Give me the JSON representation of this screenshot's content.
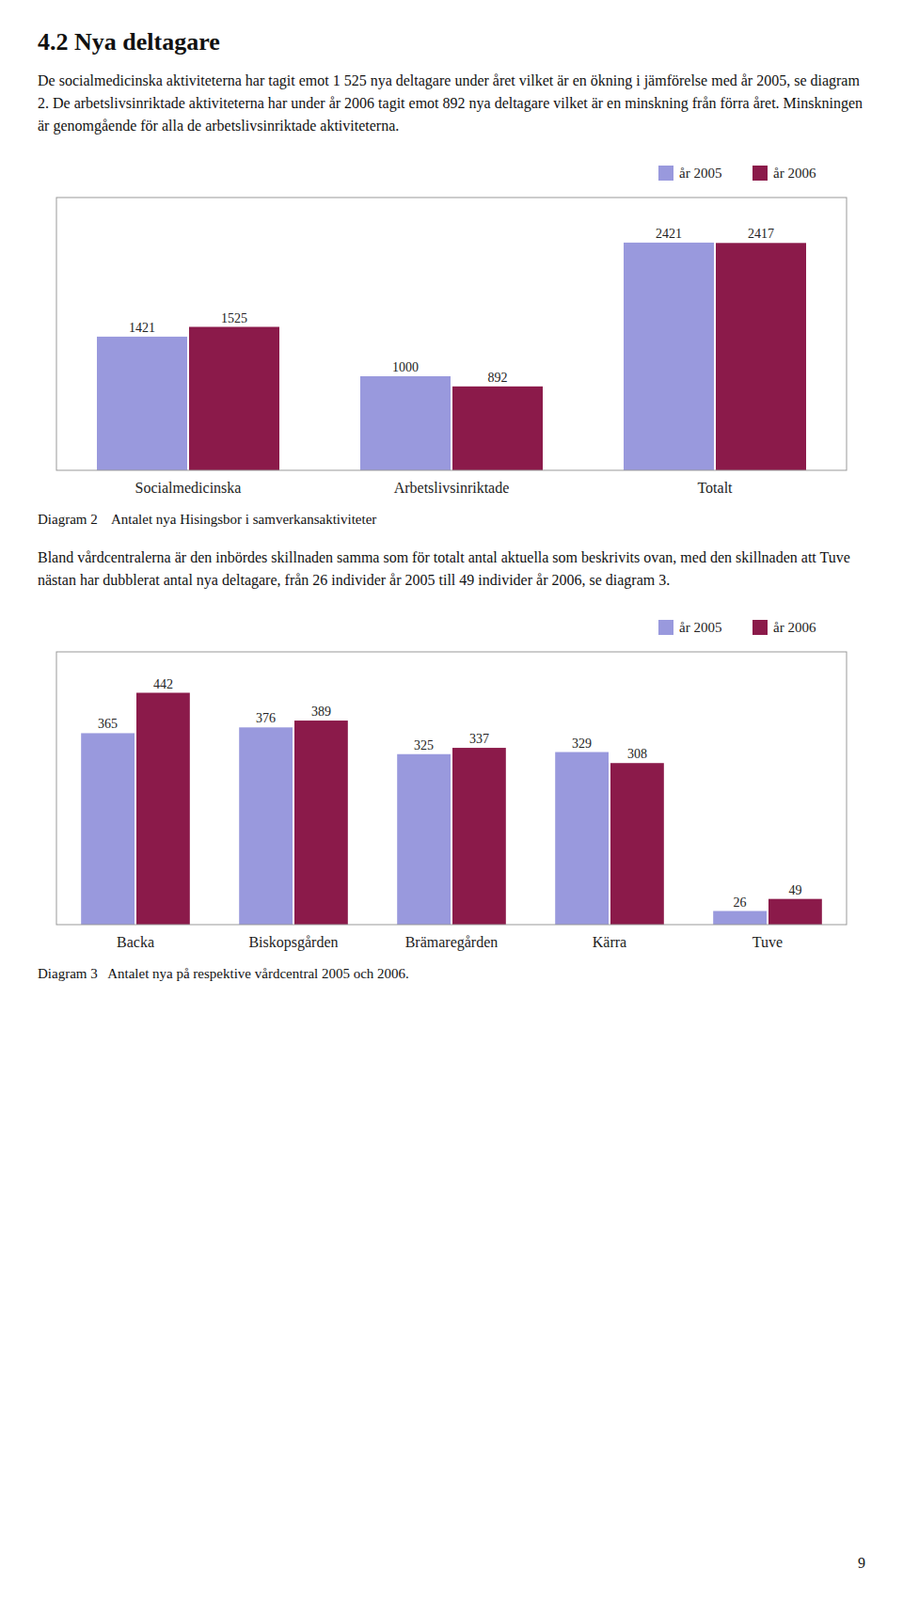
{
  "heading": "4.2 Nya deltagare",
  "body_text1": "De socialmedicinska aktiviteterna har tagit emot 1 525 nya deltagare under året vilket är en ökning i jämförelse med år 2005, se diagram 2. De arbetslivsinriktade aktiviteterna har under år 2006 tagit emot 892 nya deltagare vilket är en minskning från förra året. Minskningen är genomgående för alla de arbetslivsinriktade aktiviteterna.",
  "body_text2": "Bland vårdcentralerna är den inbördes skillnaden samma som för totalt antal aktuella som beskrivits ovan, med den skillnaden att Tuve nästan har dubblerat antal nya deltagare, från 26 individer år 2005 till 49 individer år 2006, se diagram 3.",
  "page_number": "9",
  "chart_data": [
    {
      "type": "bar",
      "title": "Diagram 2    Antalet nya Hisingsbor i samverkansaktiviteter",
      "categories": [
        "Socialmedicinska",
        "Arbetslivsinriktade",
        "Totalt"
      ],
      "series": [
        {
          "name": "år 2005",
          "color": "#9999dd",
          "values": [
            1421,
            1000,
            2421
          ]
        },
        {
          "name": "år 2006",
          "color": "#8B1A4A",
          "values": [
            1525,
            892,
            2417
          ]
        }
      ],
      "ylim": [
        0,
        2900
      ],
      "tick_labels": "x",
      "data_labels": true,
      "legend": "upper right",
      "grid": false
    },
    {
      "type": "bar",
      "title": "Diagram 3   Antalet nya på respektive vårdcentral 2005 och 2006.",
      "categories": [
        "Backa",
        "Biskopsgården",
        "Brämaregården",
        "Kärra",
        "Tuve"
      ],
      "series": [
        {
          "name": "år 2005",
          "color": "#9999dd",
          "values": [
            365,
            376,
            325,
            329,
            26
          ]
        },
        {
          "name": "år 2006",
          "color": "#8B1A4A",
          "values": [
            442,
            389,
            337,
            308,
            49
          ]
        }
      ],
      "ylim": [
        0,
        520
      ],
      "tick_labels": "x",
      "data_labels": true,
      "legend": "upper right",
      "grid": false
    }
  ]
}
